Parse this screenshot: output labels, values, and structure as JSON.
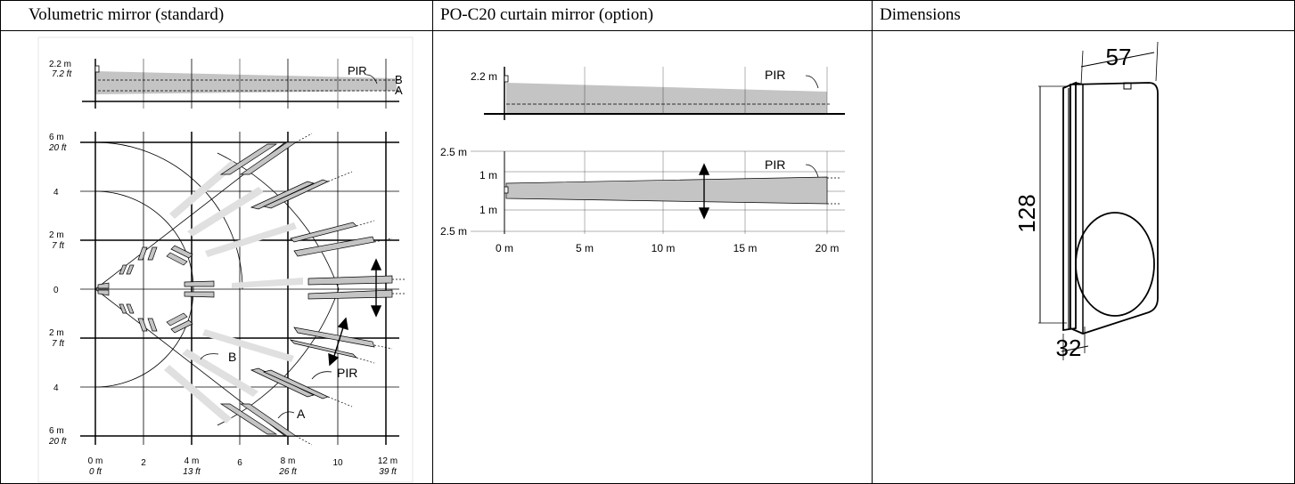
{
  "headers": {
    "volumetric": "Volumetric mirror (standard)",
    "curtain": "PO-C20 curtain mirror (option)",
    "dimensions": "Dimensions"
  },
  "volumetric": {
    "side_labels": {
      "height_m": "2.2 m",
      "height_ft": "7.2 ft",
      "pir": "PIR",
      "b": "B",
      "a": "A"
    },
    "y_labels": [
      {
        "m": "6 m",
        "ft": "20 ft"
      },
      {
        "m": "4",
        "ft": ""
      },
      {
        "m": "2 m",
        "ft": "7 ft"
      },
      {
        "m": "0",
        "ft": ""
      },
      {
        "m": "2 m",
        "ft": "7 ft"
      },
      {
        "m": "4",
        "ft": ""
      },
      {
        "m": "6 m",
        "ft": "20 ft"
      }
    ],
    "x_labels": [
      {
        "m": "0 m",
        "ft": "0 ft"
      },
      {
        "m": "2",
        "ft": ""
      },
      {
        "m": "4 m",
        "ft": "13 ft"
      },
      {
        "m": "6",
        "ft": ""
      },
      {
        "m": "8 m",
        "ft": "26 ft"
      },
      {
        "m": "10",
        "ft": ""
      },
      {
        "m": "12 m",
        "ft": "39 ft"
      }
    ],
    "plan_labels": {
      "b": "B",
      "pir": "PIR",
      "a": "A"
    }
  },
  "curtain": {
    "side": {
      "height": "2.2 m",
      "pir": "PIR"
    },
    "top": {
      "top_label": "2.5 m",
      "up_label": "1 m",
      "down_label": "1 m",
      "bottom_label": "2.5 m",
      "pir": "PIR",
      "x_labels": [
        "0 m",
        "5 m",
        "10 m",
        "15 m",
        "20 m"
      ]
    }
  },
  "dimensions": {
    "width": "57",
    "height": "128",
    "depth": "32"
  },
  "colors": {
    "zone_gray": "#c4c4c4",
    "beam_light": "#e0e0e0",
    "line": "#000000"
  }
}
